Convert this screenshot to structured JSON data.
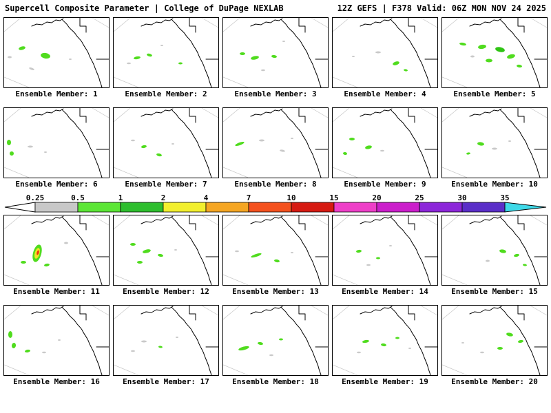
{
  "header": {
    "left": "Supercell Composite Parameter | College of DuPage NEXLAB",
    "right": "12Z GEFS | F378 Valid: 06Z MON NOV 24 2025"
  },
  "colorbar": {
    "ticks": [
      "0.25",
      "0.5",
      "1",
      "2",
      "4",
      "7",
      "10",
      "15",
      "20",
      "25",
      "30",
      "35"
    ],
    "segment_colors": [
      "#c8c8c8",
      "#5ce636",
      "#2ebe2e",
      "#f2ef2e",
      "#f5a623",
      "#f4511e",
      "#d61a12",
      "#ee3fc8",
      "#cb1ecb",
      "#8c26d9",
      "#5a2ec8"
    ],
    "left_arrow_color": "#ffffff",
    "right_arrow_color": "#3fd9e8",
    "outline_color": "#000000"
  },
  "map": {
    "background": "#ffffff",
    "land_outline_color": "#000000",
    "graticule_color": "#c6c6c6",
    "blob_palette": {
      "g": "#50dc1e",
      "G": "#2fc414",
      "y": "#f0e428",
      "r": "#ee3311",
      "x": "#c9c9c9"
    }
  },
  "members": [
    {
      "id": 1,
      "label": "Ensemble Member: 1",
      "blobs": [
        [
          26,
          44,
          5,
          2.5,
          -15,
          "g"
        ],
        [
          60,
          55,
          7,
          4,
          10,
          "g"
        ],
        [
          8,
          57,
          3,
          1.5,
          0,
          "x"
        ],
        [
          40,
          74,
          4,
          1.5,
          20,
          "x"
        ],
        [
          96,
          60,
          2,
          1,
          0,
          "x"
        ]
      ]
    },
    {
      "id": 2,
      "label": "Ensemble Member: 2",
      "blobs": [
        [
          34,
          58,
          5,
          2,
          -10,
          "g"
        ],
        [
          52,
          54,
          4,
          2,
          15,
          "g"
        ],
        [
          97,
          66,
          3,
          1.5,
          0,
          "g"
        ],
        [
          22,
          66,
          3,
          1.2,
          0,
          "x"
        ],
        [
          70,
          40,
          2,
          1,
          0,
          "x"
        ]
      ]
    },
    {
      "id": 3,
      "label": "Ensemble Member: 3",
      "blobs": [
        [
          28,
          52,
          4,
          2,
          0,
          "g"
        ],
        [
          46,
          58,
          6,
          2.5,
          -12,
          "g"
        ],
        [
          74,
          56,
          4,
          2,
          8,
          "g"
        ],
        [
          58,
          76,
          3,
          1.2,
          0,
          "x"
        ],
        [
          88,
          34,
          2,
          1,
          0,
          "x"
        ]
      ]
    },
    {
      "id": 4,
      "label": "Ensemble Member: 4",
      "blobs": [
        [
          66,
          50,
          4,
          1.5,
          0,
          "x"
        ],
        [
          92,
          66,
          5,
          2.5,
          -18,
          "g"
        ],
        [
          106,
          76,
          3,
          1.5,
          10,
          "g"
        ],
        [
          30,
          56,
          2,
          1,
          0,
          "x"
        ]
      ]
    },
    {
      "id": 5,
      "label": "Ensemble Member: 5",
      "blobs": [
        [
          30,
          38,
          5,
          2,
          10,
          "g"
        ],
        [
          58,
          42,
          6,
          3,
          -8,
          "g"
        ],
        [
          84,
          46,
          7,
          3.5,
          12,
          "G"
        ],
        [
          100,
          56,
          6,
          3,
          -14,
          "g"
        ],
        [
          68,
          62,
          5,
          2.5,
          0,
          "g"
        ],
        [
          112,
          70,
          4,
          2,
          8,
          "g"
        ],
        [
          44,
          56,
          3,
          1.5,
          0,
          "x"
        ]
      ]
    },
    {
      "id": 6,
      "label": "Ensemble Member: 6",
      "blobs": [
        [
          7,
          50,
          3,
          4,
          0,
          "g"
        ],
        [
          11,
          66,
          3,
          3,
          15,
          "g"
        ],
        [
          38,
          56,
          4,
          1.5,
          0,
          "x"
        ],
        [
          60,
          64,
          2,
          1,
          0,
          "x"
        ]
      ]
    },
    {
      "id": 7,
      "label": "Ensemble Member: 7",
      "blobs": [
        [
          44,
          56,
          4,
          2,
          -10,
          "g"
        ],
        [
          66,
          68,
          4,
          2,
          12,
          "g"
        ],
        [
          28,
          47,
          3,
          1.2,
          0,
          "x"
        ],
        [
          86,
          52,
          2,
          1,
          0,
          "x"
        ]
      ]
    },
    {
      "id": 8,
      "label": "Ensemble Member: 8",
      "blobs": [
        [
          24,
          52,
          7,
          2,
          -20,
          "g"
        ],
        [
          56,
          47,
          4,
          1.5,
          0,
          "x"
        ],
        [
          86,
          62,
          4,
          1.5,
          10,
          "x"
        ],
        [
          100,
          44,
          2,
          1,
          0,
          "x"
        ]
      ]
    },
    {
      "id": 9,
      "label": "Ensemble Member: 9",
      "blobs": [
        [
          28,
          45,
          4,
          2,
          0,
          "g"
        ],
        [
          52,
          57,
          5,
          2.5,
          -12,
          "g"
        ],
        [
          18,
          66,
          3,
          2,
          10,
          "g"
        ],
        [
          72,
          62,
          3,
          1.2,
          0,
          "x"
        ]
      ]
    },
    {
      "id": 10,
      "label": "Ensemble Member: 10",
      "blobs": [
        [
          56,
          52,
          5,
          2.5,
          8,
          "g"
        ],
        [
          76,
          59,
          4,
          1.5,
          0,
          "x"
        ],
        [
          38,
          66,
          3,
          1.5,
          -10,
          "g"
        ],
        [
          98,
          48,
          2,
          1,
          0,
          "x"
        ]
      ]
    },
    {
      "id": 11,
      "label": "Ensemble Member: 11",
      "blobs": [
        [
          48,
          55,
          6,
          13,
          15,
          "g"
        ],
        [
          48,
          55,
          3.5,
          8,
          15,
          "y"
        ],
        [
          49,
          54,
          1.6,
          3.5,
          15,
          "r"
        ],
        [
          28,
          68,
          4,
          2,
          0,
          "g"
        ],
        [
          62,
          72,
          4,
          2,
          -10,
          "g"
        ],
        [
          90,
          40,
          3,
          1.5,
          0,
          "x"
        ]
      ]
    },
    {
      "id": 12,
      "label": "Ensemble Member: 12",
      "blobs": [
        [
          28,
          42,
          4,
          2,
          0,
          "g"
        ],
        [
          48,
          52,
          6,
          2.5,
          -14,
          "g"
        ],
        [
          68,
          58,
          4,
          2,
          10,
          "g"
        ],
        [
          38,
          68,
          4,
          2,
          0,
          "g"
        ],
        [
          90,
          50,
          2,
          1,
          0,
          "x"
        ]
      ]
    },
    {
      "id": 13,
      "label": "Ensemble Member: 13",
      "blobs": [
        [
          48,
          58,
          8,
          2,
          -18,
          "g"
        ],
        [
          78,
          66,
          4,
          2,
          10,
          "g"
        ],
        [
          20,
          52,
          3,
          1.2,
          0,
          "x"
        ],
        [
          100,
          54,
          2,
          1,
          0,
          "x"
        ]
      ]
    },
    {
      "id": 14,
      "label": "Ensemble Member: 14",
      "blobs": [
        [
          38,
          52,
          4,
          2,
          -8,
          "g"
        ],
        [
          66,
          62,
          3,
          1.5,
          0,
          "g"
        ],
        [
          52,
          72,
          3,
          1.2,
          0,
          "x"
        ],
        [
          84,
          44,
          2,
          1,
          0,
          "x"
        ]
      ]
    },
    {
      "id": 15,
      "label": "Ensemble Member: 15",
      "blobs": [
        [
          88,
          52,
          5,
          2.5,
          10,
          "g"
        ],
        [
          108,
          58,
          4,
          2,
          -12,
          "g"
        ],
        [
          66,
          66,
          3,
          1.5,
          0,
          "x"
        ],
        [
          120,
          72,
          3,
          1.5,
          8,
          "g"
        ]
      ]
    },
    {
      "id": 16,
      "label": "Ensemble Member: 16",
      "blobs": [
        [
          9,
          42,
          3,
          5,
          0,
          "g"
        ],
        [
          14,
          58,
          3,
          4,
          10,
          "g"
        ],
        [
          34,
          66,
          4,
          2,
          -10,
          "g"
        ],
        [
          58,
          68,
          3,
          1.2,
          0,
          "x"
        ],
        [
          80,
          50,
          2,
          1,
          0,
          "x"
        ]
      ]
    },
    {
      "id": 17,
      "label": "Ensemble Member: 17",
      "blobs": [
        [
          44,
          52,
          4,
          1.5,
          0,
          "x"
        ],
        [
          68,
          60,
          3,
          1.5,
          8,
          "g"
        ],
        [
          28,
          66,
          3,
          1.2,
          0,
          "x"
        ],
        [
          92,
          46,
          2,
          1,
          0,
          "x"
        ]
      ]
    },
    {
      "id": 18,
      "label": "Ensemble Member: 18",
      "blobs": [
        [
          30,
          62,
          8,
          2.5,
          -15,
          "g"
        ],
        [
          54,
          55,
          4,
          2,
          10,
          "g"
        ],
        [
          84,
          49,
          3,
          1.5,
          0,
          "g"
        ],
        [
          70,
          72,
          3,
          1.2,
          0,
          "x"
        ]
      ]
    },
    {
      "id": 19,
      "label": "Ensemble Member: 19",
      "blobs": [
        [
          48,
          52,
          5,
          2,
          -10,
          "g"
        ],
        [
          74,
          57,
          4,
          2,
          8,
          "g"
        ],
        [
          94,
          47,
          3,
          1.5,
          0,
          "g"
        ],
        [
          38,
          68,
          3,
          1.2,
          0,
          "x"
        ],
        [
          112,
          62,
          2,
          1,
          0,
          "x"
        ]
      ]
    },
    {
      "id": 20,
      "label": "Ensemble Member: 20",
      "blobs": [
        [
          98,
          42,
          5,
          2.5,
          12,
          "g"
        ],
        [
          114,
          52,
          4,
          2,
          -10,
          "g"
        ],
        [
          84,
          62,
          4,
          2,
          0,
          "g"
        ],
        [
          58,
          68,
          3,
          1.2,
          0,
          "x"
        ],
        [
          30,
          54,
          2,
          1,
          0,
          "x"
        ]
      ]
    }
  ]
}
